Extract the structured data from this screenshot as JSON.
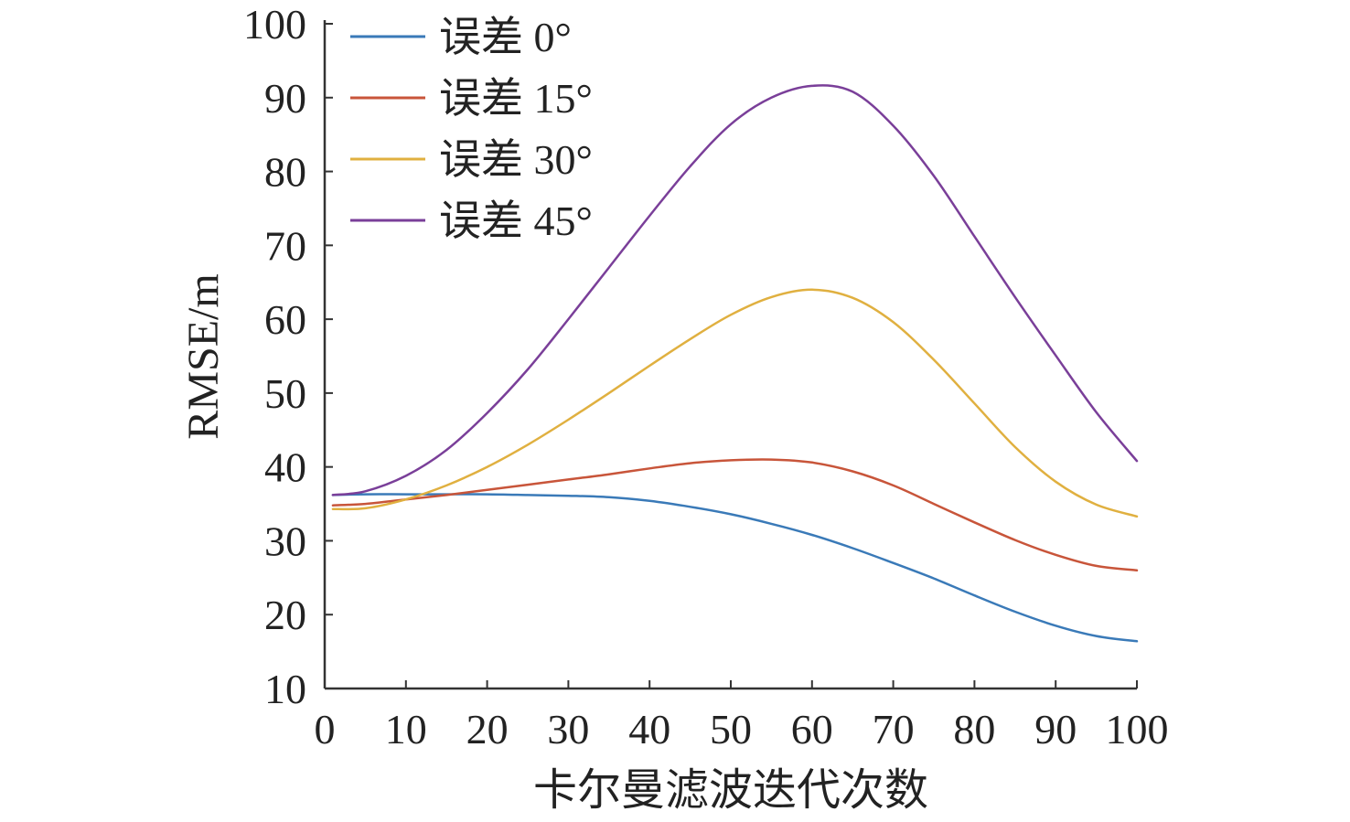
{
  "chart_data": {
    "type": "line",
    "title": "",
    "xlabel": "卡尔曼滤波迭代次数",
    "ylabel": "RMSE/m",
    "xlim": [
      0,
      100
    ],
    "ylim": [
      10,
      100
    ],
    "x_ticks": [
      0,
      10,
      20,
      30,
      40,
      50,
      60,
      70,
      80,
      90,
      100
    ],
    "y_ticks": [
      10,
      20,
      30,
      40,
      50,
      60,
      70,
      80,
      90,
      100
    ],
    "x_tick_labels": [
      "0",
      "10",
      "20",
      "30",
      "40",
      "50",
      "60",
      "70",
      "80",
      "90",
      "100"
    ],
    "y_tick_labels": [
      "10",
      "20",
      "30",
      "40",
      "50",
      "60",
      "70",
      "80",
      "90",
      "100"
    ],
    "grid": false,
    "legend_position": "top-left",
    "x": [
      1,
      5,
      10,
      15,
      20,
      25,
      30,
      35,
      40,
      45,
      50,
      55,
      60,
      65,
      70,
      75,
      80,
      85,
      90,
      95,
      100
    ],
    "series": [
      {
        "name": "误差 0°",
        "color": "#3a7ab8",
        "values": [
          36.2,
          36.3,
          36.3,
          36.3,
          36.3,
          36.2,
          36.1,
          35.9,
          35.4,
          34.6,
          33.6,
          32.3,
          30.8,
          29.0,
          27.0,
          24.9,
          22.6,
          20.4,
          18.5,
          17.1,
          16.4
        ]
      },
      {
        "name": "误差 15°",
        "color": "#c8553a",
        "values": [
          34.8,
          35.0,
          35.6,
          36.2,
          36.9,
          37.6,
          38.3,
          39.0,
          39.8,
          40.5,
          40.9,
          41.0,
          40.6,
          39.4,
          37.5,
          35.0,
          32.5,
          30.1,
          28.1,
          26.6,
          26.0
        ]
      },
      {
        "name": "误差 30°",
        "color": "#e0b040",
        "values": [
          34.3,
          34.4,
          35.6,
          37.5,
          40.0,
          43.0,
          46.4,
          50.0,
          53.7,
          57.3,
          60.6,
          63.0,
          64.0,
          62.9,
          59.6,
          54.5,
          48.6,
          42.7,
          38.0,
          34.9,
          33.3
        ]
      },
      {
        "name": "误差 45°",
        "color": "#7a3f99",
        "values": [
          36.2,
          36.7,
          38.8,
          42.3,
          47.3,
          53.2,
          60.0,
          67.0,
          74.0,
          80.7,
          86.4,
          90.0,
          91.6,
          90.8,
          86.2,
          79.4,
          71.2,
          63.0,
          55.1,
          47.4,
          40.8
        ]
      }
    ]
  }
}
